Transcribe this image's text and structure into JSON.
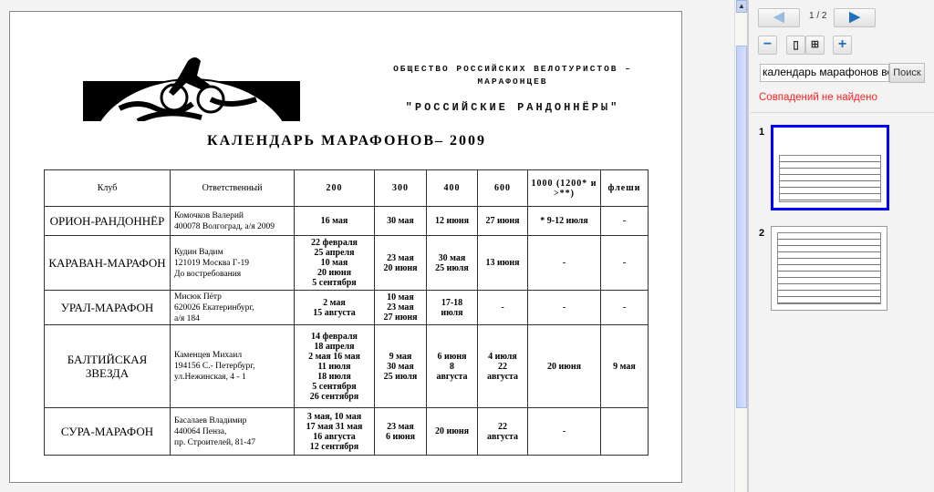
{
  "document": {
    "org_line": "ОБЩЕСТВО РОССИЙСКИХ ВЕЛОТУРИСТОВ – МАРАФОНЦЕВ",
    "org_name": "\"РОССИЙСКИЕ РАНДОННЁРЫ\"",
    "title": "КАЛЕНДАРЬ МАРАФОНОВ– 2009",
    "table": {
      "headers": [
        "Клуб",
        "Ответственный",
        "200",
        "300",
        "400",
        "600",
        "1000 (1200* и >**)",
        "флеши"
      ],
      "rows": [
        {
          "club": "ОРИОН-РАНДОННЁР",
          "resp": [
            "Комочков Валерий",
            "400078 Волгоград, а/я 2009"
          ],
          "c200": [
            "16 мая"
          ],
          "c300": [
            "30 мая"
          ],
          "c400": [
            "12 июня"
          ],
          "c600": [
            "27 июня"
          ],
          "c1000": [
            "* 9-12 июля"
          ],
          "flesh": [
            "-"
          ]
        },
        {
          "club": "КАРАВАН-МАРАФОН",
          "resp": [
            "Кудин Вадим",
            "121019 Москва Г-19",
            "До востребования"
          ],
          "c200": [
            "22 февраля",
            "25 апреля",
            "10 мая",
            "20 июня",
            "5 сентября"
          ],
          "c300": [
            "23 мая",
            "20 июня"
          ],
          "c400": [
            "30 мая",
            "25 июля"
          ],
          "c600": [
            "13 июня"
          ],
          "c1000": [
            "-"
          ],
          "flesh": [
            "-"
          ]
        },
        {
          "club": "УРАЛ-МАРАФОН",
          "resp": [
            "Мисюк Пётр",
            "620026 Екатеринбург,",
            "а/я 184"
          ],
          "c200": [
            "2 мая",
            "15 августа"
          ],
          "c300": [
            "10 мая",
            "23 мая",
            "27 июня"
          ],
          "c400": [
            "17-18",
            "июля"
          ],
          "c600": [
            "-"
          ],
          "c1000": [
            "-"
          ],
          "flesh": [
            "-"
          ]
        },
        {
          "club": "БАЛТИЙСКАЯ ЗВЕЗДА",
          "resp": [
            "Каменцев Михаил",
            "194156 С.- Петербург,",
            "ул.Нежинская, 4 - 1"
          ],
          "c200": [
            "14 февраля",
            "18 апреля",
            "2 мая 16 мая",
            "11 июля",
            "18 июля",
            "5 сентября",
            "26 сентября"
          ],
          "c300": [
            "9 мая",
            "30 мая",
            "25 июля"
          ],
          "c400": [
            "6 июня",
            "8",
            "августа"
          ],
          "c600": [
            "4 июля",
            "22",
            "августа"
          ],
          "c1000": [
            "20 июня"
          ],
          "flesh": [
            "9 мая"
          ]
        },
        {
          "club": "СУРА-МАРАФОН",
          "resp": [
            "Басалаев Владимир",
            "440064 Пенза,",
            "пр. Строителей, 81-47"
          ],
          "c200": [
            "3 мая, 10 мая",
            "17 мая 31 мая",
            "16 августа",
            "12 сентября"
          ],
          "c300": [
            "23 мая",
            "6 июня"
          ],
          "c400": [
            "20 июня"
          ],
          "c600": [
            "22",
            "августа"
          ],
          "c1000": [
            "-"
          ],
          "flesh": [
            ""
          ]
        }
      ]
    }
  },
  "toolbar": {
    "prev_icon": "arrow-left-icon",
    "next_icon": "arrow-right-icon",
    "page_indicator": "1 / 2",
    "zoom_out": "−",
    "zoom_in": "+",
    "search_value": "календарь марафонов ве",
    "search_button": "Поиск",
    "no_match": "Совпадений не найдено"
  },
  "thumbnails": [
    {
      "number": "1",
      "selected": true
    },
    {
      "number": "2",
      "selected": false
    }
  ],
  "colors": {
    "accent": "#1f6fc0",
    "selected_border": "#0000ff",
    "error": "#ff2222"
  }
}
